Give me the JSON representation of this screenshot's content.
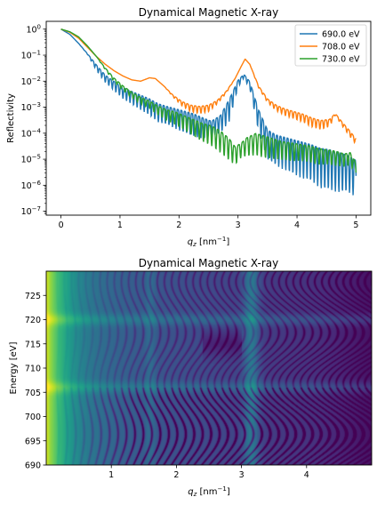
{
  "chart_data": [
    {
      "type": "line",
      "title": "Dynamical Magnetic X-ray",
      "xlabel_main": "q",
      "xlabel_sub": "z",
      "xlabel_unit_pre": " [nm",
      "xlabel_unit_exp": "−1",
      "xlabel_unit_post": "]",
      "ylabel": "Reflectivity",
      "yscale": "log",
      "xlim": [
        -0.25,
        5.25
      ],
      "ylim_exp": [
        -7.15,
        0.3
      ],
      "xticks": [
        0,
        1,
        2,
        3,
        4,
        5
      ],
      "xtick_labels": [
        "0",
        "1",
        "2",
        "3",
        "4",
        "5"
      ],
      "yticks_exp": [
        0,
        -1,
        -2,
        -3,
        -4,
        -5,
        -6,
        -7
      ],
      "ytick_base": "10",
      "ytick_exps": [
        "0",
        "−1",
        "−2",
        "−3",
        "−4",
        "−5",
        "−6",
        "−7"
      ],
      "legend_position": "top-right",
      "series": [
        {
          "name": "690.0 eV",
          "color": "#1f77b4",
          "log10_points": [
            [
              0.0,
              0.0
            ],
            [
              0.15,
              -0.2
            ],
            [
              0.3,
              -0.55
            ],
            [
              0.45,
              -0.95
            ],
            [
              0.6,
              -1.4
            ],
            [
              0.75,
              -1.8
            ],
            [
              0.9,
              -2.05
            ],
            [
              1.05,
              -2.3
            ],
            [
              1.2,
              -2.45
            ],
            [
              1.35,
              -2.6
            ],
            [
              1.5,
              -2.75
            ],
            [
              1.65,
              -2.95
            ],
            [
              1.8,
              -3.05
            ],
            [
              1.95,
              -3.15
            ],
            [
              2.1,
              -3.25
            ],
            [
              2.25,
              -3.35
            ],
            [
              2.4,
              -3.5
            ],
            [
              2.55,
              -3.6
            ],
            [
              2.7,
              -3.4
            ],
            [
              2.85,
              -2.8
            ],
            [
              3.0,
              -2.0
            ],
            [
              3.1,
              -1.75
            ],
            [
              3.2,
              -2.05
            ],
            [
              3.35,
              -3.2
            ],
            [
              3.5,
              -4.0
            ],
            [
              3.65,
              -4.2
            ],
            [
              3.8,
              -4.3
            ],
            [
              3.95,
              -4.4
            ],
            [
              4.1,
              -4.5
            ],
            [
              4.25,
              -4.6
            ],
            [
              4.4,
              -4.75
            ],
            [
              4.55,
              -4.8
            ],
            [
              4.7,
              -4.9
            ],
            [
              4.85,
              -5.0
            ],
            [
              5.0,
              -5.2
            ]
          ],
          "osc_amp": [
            0,
            0,
            0,
            0.02,
            0.15,
            0.2,
            0.25,
            0.3,
            0.35,
            0.4,
            0.45,
            0.5,
            0.5,
            0.55,
            0.6,
            0.6,
            0.6,
            0.4,
            0.5,
            0.6,
            0.2,
            0.1,
            0.2,
            0.6,
            0.8,
            0.85,
            0.9,
            0.95,
            1.0,
            1.0,
            1.1,
            1.1,
            1.1,
            1.0,
            1.0
          ],
          "osc_period": 0.12
        },
        {
          "name": "708.0 eV",
          "color": "#ff7f0e",
          "log10_points": [
            [
              0.0,
              0.0
            ],
            [
              0.15,
              -0.12
            ],
            [
              0.3,
              -0.35
            ],
            [
              0.45,
              -0.7
            ],
            [
              0.6,
              -1.05
            ],
            [
              0.75,
              -1.35
            ],
            [
              0.9,
              -1.6
            ],
            [
              1.05,
              -1.8
            ],
            [
              1.2,
              -1.95
            ],
            [
              1.35,
              -2.0
            ],
            [
              1.5,
              -1.87
            ],
            [
              1.6,
              -1.9
            ],
            [
              1.75,
              -2.2
            ],
            [
              1.9,
              -2.55
            ],
            [
              2.05,
              -2.8
            ],
            [
              2.2,
              -2.95
            ],
            [
              2.35,
              -3.0
            ],
            [
              2.5,
              -2.95
            ],
            [
              2.65,
              -2.75
            ],
            [
              2.8,
              -2.4
            ],
            [
              2.95,
              -1.9
            ],
            [
              3.05,
              -1.45
            ],
            [
              3.12,
              -1.15
            ],
            [
              3.2,
              -1.35
            ],
            [
              3.35,
              -2.2
            ],
            [
              3.5,
              -2.7
            ],
            [
              3.65,
              -2.95
            ],
            [
              3.8,
              -3.1
            ],
            [
              3.95,
              -3.2
            ],
            [
              4.1,
              -3.3
            ],
            [
              4.25,
              -3.45
            ],
            [
              4.4,
              -3.55
            ],
            [
              4.55,
              -3.5
            ],
            [
              4.65,
              -3.25
            ],
            [
              4.75,
              -3.55
            ],
            [
              4.9,
              -3.95
            ],
            [
              5.0,
              -4.25
            ]
          ],
          "osc_amp": [
            0,
            0,
            0,
            0,
            0,
            0,
            0,
            0,
            0,
            0,
            0,
            0,
            0,
            0.05,
            0.12,
            0.18,
            0.2,
            0.18,
            0.1,
            0.05,
            0,
            0,
            0,
            0,
            0.05,
            0.1,
            0.15,
            0.18,
            0.2,
            0.22,
            0.25,
            0.25,
            0.2,
            0.05,
            0.1,
            0.15,
            0.15
          ],
          "osc_period": 0.13
        },
        {
          "name": "730.0 eV",
          "color": "#2ca02c",
          "log10_points": [
            [
              0.0,
              0.0
            ],
            [
              0.15,
              -0.1
            ],
            [
              0.3,
              -0.3
            ],
            [
              0.45,
              -0.65
            ],
            [
              0.6,
              -1.05
            ],
            [
              0.75,
              -1.5
            ],
            [
              0.9,
              -1.9
            ],
            [
              1.05,
              -2.2
            ],
            [
              1.2,
              -2.45
            ],
            [
              1.35,
              -2.65
            ],
            [
              1.5,
              -2.8
            ],
            [
              1.65,
              -3.0
            ],
            [
              1.8,
              -3.15
            ],
            [
              1.95,
              -3.25
            ],
            [
              2.1,
              -3.4
            ],
            [
              2.25,
              -3.55
            ],
            [
              2.4,
              -3.7
            ],
            [
              2.55,
              -3.8
            ],
            [
              2.7,
              -4.0
            ],
            [
              2.85,
              -4.3
            ],
            [
              2.95,
              -4.6
            ],
            [
              3.05,
              -4.45
            ],
            [
              3.15,
              -4.25
            ],
            [
              3.3,
              -4.1
            ],
            [
              3.45,
              -4.2
            ],
            [
              3.6,
              -4.3
            ],
            [
              3.75,
              -4.4
            ],
            [
              3.9,
              -4.45
            ],
            [
              4.05,
              -4.5
            ],
            [
              4.2,
              -4.55
            ],
            [
              4.35,
              -4.65
            ],
            [
              4.5,
              -4.7
            ],
            [
              4.65,
              -4.75
            ],
            [
              4.8,
              -4.85
            ],
            [
              4.9,
              -4.8
            ],
            [
              5.0,
              -5.2
            ]
          ],
          "osc_amp": [
            0,
            0,
            0,
            0,
            0,
            0.05,
            0.1,
            0.12,
            0.15,
            0.18,
            0.2,
            0.25,
            0.3,
            0.35,
            0.4,
            0.45,
            0.5,
            0.55,
            0.6,
            0.6,
            0.5,
            0.4,
            0.5,
            0.6,
            0.6,
            0.55,
            0.5,
            0.5,
            0.45,
            0.45,
            0.45,
            0.4,
            0.4,
            0.35,
            0.35,
            0.3
          ],
          "osc_period": 0.14
        }
      ]
    },
    {
      "type": "heatmap",
      "title": "Dynamical Magnetic X-ray",
      "xlabel_main": "q",
      "xlabel_sub": "z",
      "xlabel_unit_pre": " [nm",
      "xlabel_unit_exp": "−1",
      "xlabel_unit_post": "]",
      "ylabel": "Energy [eV]",
      "xlim": [
        0.0,
        5.0
      ],
      "ylim": [
        690,
        730
      ],
      "xticks": [
        1,
        2,
        3,
        4
      ],
      "xtick_labels": [
        "1",
        "2",
        "3",
        "4"
      ],
      "yticks": [
        690,
        695,
        700,
        705,
        710,
        715,
        720,
        725
      ],
      "ytick_labels": [
        "690",
        "695",
        "700",
        "705",
        "710",
        "715",
        "720",
        "725"
      ],
      "colormap": "viridis",
      "bright_rows_eV": [
        706,
        720
      ],
      "bright_column_qz": 3.15
    }
  ]
}
